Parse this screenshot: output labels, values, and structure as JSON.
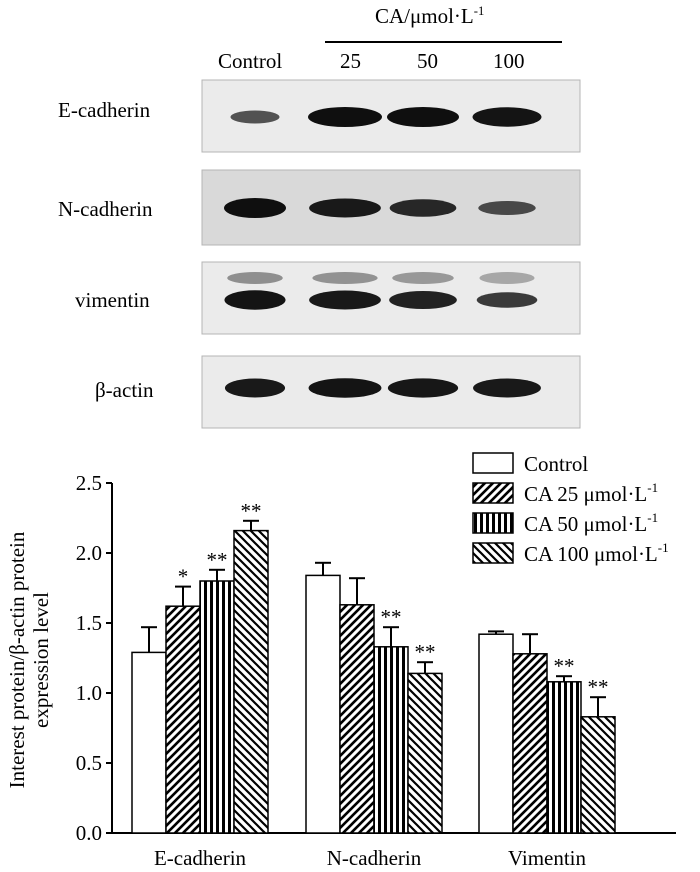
{
  "blot": {
    "conc_label": "CA/μmol·L",
    "conc_label_sup": "-1",
    "lane_labels": [
      "Control",
      "25",
      "50",
      "100"
    ],
    "rows": [
      {
        "label": "E-cadherin",
        "panel_bg": "#ebebeb",
        "band_levels": [
          0.3,
          1.0,
          1.0,
          0.95
        ]
      },
      {
        "label": "N-cadherin",
        "panel_bg": "#d9d9d9",
        "band_levels": [
          1.0,
          0.9,
          0.75,
          0.4
        ]
      },
      {
        "label": "vimentin",
        "panel_bg": "#ebebeb",
        "band_levels": [
          0.95,
          0.9,
          0.8,
          0.55
        ]
      },
      {
        "label": "β-actin",
        "panel_bg": "#ebebeb",
        "band_levels": [
          0.9,
          0.95,
          0.92,
          0.9
        ]
      }
    ]
  },
  "chart_data": {
    "type": "bar",
    "categories": [
      "E-cadherin",
      "N-cadherin",
      "Vimentin"
    ],
    "ylabel": "Interest protein/β-actin protein expression level",
    "ylabel_lines": [
      "Interest protein/β-actin protein",
      "expression level"
    ],
    "ylim": [
      0.0,
      2.5
    ],
    "yticks": [
      "0.0",
      "0.5",
      "1.0",
      "1.5",
      "2.0",
      "2.5"
    ],
    "legend_position": "top-right",
    "series": [
      {
        "name": "Control",
        "unit": "μmol·L",
        "unit_sup": "",
        "pattern": "none",
        "values": [
          1.29,
          1.84,
          1.42
        ],
        "errors": [
          0.18,
          0.09,
          0.02
        ],
        "sig": [
          "",
          "",
          ""
        ]
      },
      {
        "name": "CA 25",
        "unit": "μmol·L",
        "unit_sup": "-1",
        "pattern": "diag-right",
        "values": [
          1.62,
          1.63,
          1.28
        ],
        "errors": [
          0.14,
          0.19,
          0.14
        ],
        "sig": [
          "*",
          "",
          ""
        ]
      },
      {
        "name": "CA 50",
        "unit": "μmol·L",
        "unit_sup": "-1",
        "pattern": "vertical",
        "values": [
          1.8,
          1.33,
          1.08
        ],
        "errors": [
          0.08,
          0.14,
          0.04
        ],
        "sig": [
          "**",
          "**",
          "**"
        ]
      },
      {
        "name": "CA 100",
        "unit": "μmol·L",
        "unit_sup": "-1",
        "pattern": "diag-left",
        "values": [
          2.16,
          1.14,
          0.83
        ],
        "errors": [
          0.07,
          0.08,
          0.14
        ],
        "sig": [
          "**",
          "**",
          "**"
        ]
      }
    ]
  }
}
